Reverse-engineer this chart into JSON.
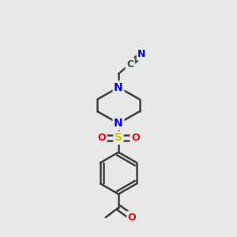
{
  "bg_color": "#e8e8e8",
  "atom_colors": {
    "C": "#2f4f4f",
    "N": "#0000ff",
    "O": "#ff0000",
    "S": "#cccc00"
  },
  "bond_color": "#404040",
  "bond_width": 1.8,
  "figsize": [
    3.0,
    3.0
  ],
  "dpi": 100
}
